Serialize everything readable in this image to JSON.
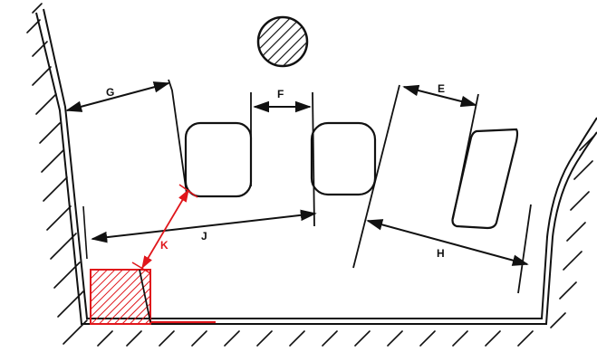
{
  "labels": {
    "g": "G",
    "f": "F",
    "e": "E",
    "j": "J",
    "h": "H",
    "k": "K"
  },
  "colors": {
    "ink": "#111111",
    "highlight": "#e0161b"
  }
}
